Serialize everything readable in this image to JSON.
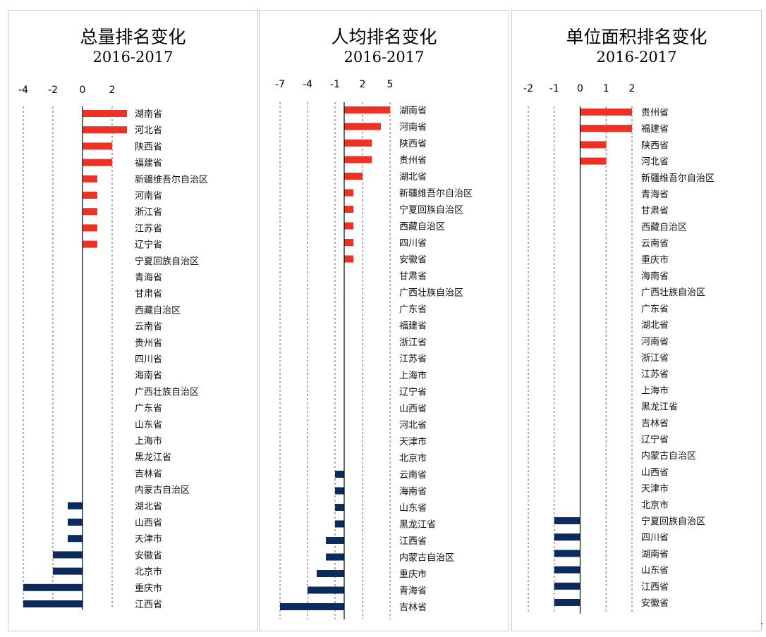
{
  "colors": {
    "positive": "#ee3124",
    "negative": "#0b2a5e",
    "axis": "#000000",
    "grid": "#666666"
  },
  "chart_data": [
    {
      "type": "bar",
      "orientation": "horizontal",
      "title": "总量排名变化",
      "subtitle": "2016-2017",
      "xlim": [
        -4,
        2
      ],
      "xticks": [
        -4,
        -2,
        0,
        2
      ],
      "grid": "dashed vertical at ticks",
      "categories": [
        "湖南省",
        "河北省",
        "陕西省",
        "福建省",
        "新疆维吾尔自治区",
        "河南省",
        "浙江省",
        "江苏省",
        "辽宁省",
        "宁夏回族自治区",
        "青海省",
        "甘肃省",
        "西藏自治区",
        "云南省",
        "贵州省",
        "四川省",
        "海南省",
        "广西壮族自治区",
        "广东省",
        "山东省",
        "上海市",
        "黑龙江省",
        "吉林省",
        "内蒙古自治区",
        "湖北省",
        "山西省",
        "天津市",
        "安徽省",
        "北京市",
        "重庆市",
        "江西省"
      ],
      "values": [
        3,
        3,
        2,
        2,
        1,
        1,
        1,
        1,
        1,
        0,
        0,
        0,
        0,
        0,
        0,
        0,
        0,
        0,
        0,
        0,
        0,
        0,
        0,
        0,
        -1,
        -1,
        -1,
        -2,
        -2,
        -4,
        -4
      ]
    },
    {
      "type": "bar",
      "orientation": "horizontal",
      "title": "人均排名变化",
      "subtitle": "2016-2017",
      "xlim": [
        -7,
        5
      ],
      "xticks": [
        -7,
        -4,
        -1,
        2,
        5
      ],
      "grid": "dashed vertical at ticks",
      "categories": [
        "湖南省",
        "河南省",
        "陕西省",
        "贵州省",
        "湖北省",
        "新疆维吾尔自治区",
        "宁夏回族自治区",
        "西藏自治区",
        "四川省",
        "安徽省",
        "甘肃省",
        "广西壮族自治区",
        "广东省",
        "福建省",
        "浙江省",
        "江苏省",
        "上海市",
        "辽宁省",
        "山西省",
        "河北省",
        "天津市",
        "北京市",
        "云南省",
        "海南省",
        "山东省",
        "黑龙江省",
        "江西省",
        "内蒙古自治区",
        "重庆市",
        "青海省",
        "吉林省"
      ],
      "values": [
        5,
        4,
        3,
        3,
        2,
        1,
        1,
        1,
        1,
        1,
        0,
        0,
        0,
        0,
        0,
        0,
        0,
        0,
        0,
        0,
        0,
        0,
        -1,
        -1,
        -1,
        -1,
        -2,
        -2,
        -3,
        -4,
        -7
      ]
    },
    {
      "type": "bar",
      "orientation": "horizontal",
      "title": "单位面积排名变化",
      "subtitle": "2016-2017",
      "xlim": [
        -2,
        2
      ],
      "xticks": [
        -2,
        -1,
        0,
        1,
        2
      ],
      "grid": "dashed vertical at ticks",
      "categories": [
        "贵州省",
        "福建省",
        "陕西省",
        "河北省",
        "新疆维吾尔自治区",
        "青海省",
        "甘肃省",
        "西藏自治区",
        "云南省",
        "重庆市",
        "海南省",
        "广西壮族自治区",
        "广东省",
        "湖北省",
        "河南省",
        "浙江省",
        "江苏省",
        "上海市",
        "黑龙江省",
        "吉林省",
        "辽宁省",
        "内蒙古自治区",
        "山西省",
        "天津市",
        "北京市",
        "宁夏回族自治区",
        "四川省",
        "湖南省",
        "山东省",
        "江西省",
        "安徽省"
      ],
      "values": [
        2,
        2,
        1,
        1,
        0,
        0,
        0,
        0,
        0,
        0,
        0,
        0,
        0,
        0,
        0,
        0,
        0,
        0,
        0,
        0,
        0,
        0,
        0,
        0,
        0,
        -1,
        -1,
        -1,
        -1,
        -1,
        -1
      ]
    }
  ]
}
